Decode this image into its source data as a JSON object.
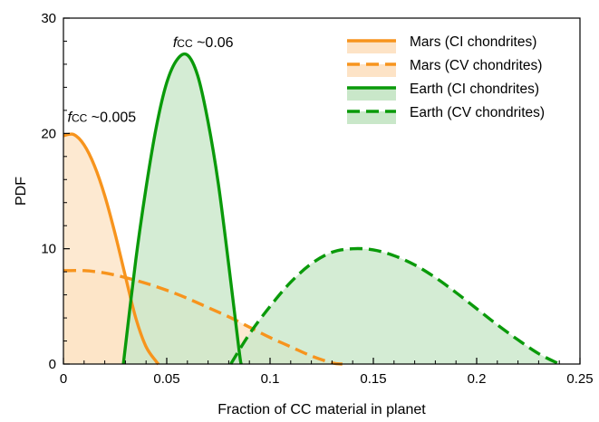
{
  "chart_data": {
    "type": "area",
    "title": "",
    "xlabel": "Fraction of CC material in planet",
    "ylabel": "PDF",
    "xlim": [
      0,
      0.25
    ],
    "ylim": [
      0,
      30
    ],
    "x_ticks": [
      "0",
      "0.05",
      "0.1",
      "0.15",
      "0.2",
      "0.25"
    ],
    "y_ticks": [
      "0",
      "10",
      "20",
      "30"
    ],
    "legend_position": "top-right",
    "grid": false,
    "series": [
      {
        "name": "Mars (CI chondrites)",
        "line_style": "solid",
        "color": "#F7941D",
        "fill": "#FDE3C6",
        "x": [
          0,
          0.005,
          0.01,
          0.015,
          0.02,
          0.025,
          0.03,
          0.035,
          0.04,
          0.045,
          0.046
        ],
        "y": [
          19.8,
          19.9,
          19.0,
          17.2,
          14.6,
          11.3,
          7.6,
          4.0,
          1.5,
          0.2,
          0
        ]
      },
      {
        "name": "Mars (CV chondrites)",
        "line_style": "dashed",
        "color": "#F7941D",
        "fill": "#FDE3C6",
        "x": [
          0,
          0.01,
          0.02,
          0.03,
          0.04,
          0.05,
          0.06,
          0.07,
          0.08,
          0.09,
          0.1,
          0.11,
          0.12,
          0.13,
          0.135
        ],
        "y": [
          8.1,
          8.1,
          7.9,
          7.5,
          7.0,
          6.4,
          5.7,
          4.9,
          4.1,
          3.2,
          2.3,
          1.5,
          0.7,
          0.1,
          0
        ]
      },
      {
        "name": "Earth (CI chondrites)",
        "line_style": "solid",
        "color": "#0A9A0A",
        "fill": "#C9E7C9",
        "x": [
          0.029,
          0.035,
          0.04,
          0.045,
          0.05,
          0.055,
          0.06,
          0.065,
          0.07,
          0.075,
          0.08,
          0.085,
          0.086
        ],
        "y": [
          0,
          9.0,
          15.3,
          20.6,
          24.4,
          26.4,
          26.8,
          25.0,
          21.0,
          15.6,
          8.6,
          1.2,
          0
        ]
      },
      {
        "name": "Earth (CV chondrites)",
        "line_style": "dashed",
        "color": "#0A9A0A",
        "fill": "#C9E7C9",
        "x": [
          0.081,
          0.09,
          0.1,
          0.11,
          0.12,
          0.13,
          0.14,
          0.15,
          0.16,
          0.17,
          0.18,
          0.19,
          0.2,
          0.21,
          0.22,
          0.23,
          0.24
        ],
        "y": [
          0,
          2.6,
          5.0,
          7.1,
          8.7,
          9.7,
          10.0,
          9.9,
          9.4,
          8.6,
          7.5,
          6.2,
          4.8,
          3.4,
          2.1,
          0.9,
          0
        ]
      }
    ],
    "annotations": [
      {
        "f": "f",
        "sub": "CC",
        "text": " ~0.005",
        "x": 0.002,
        "y": 21.0
      },
      {
        "f": "f",
        "sub": "CC",
        "text": " ~0.06",
        "x": 0.053,
        "y": 27.5
      }
    ]
  }
}
